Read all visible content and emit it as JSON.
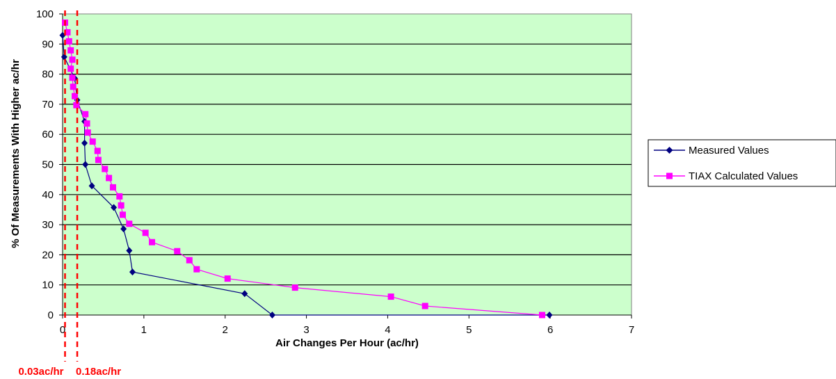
{
  "chart_data": {
    "type": "line",
    "title": "",
    "xlabel": "Air Changes Per Hour (ac/hr)",
    "ylabel": "% Of Measurements With Higher ac/hr",
    "xlim": [
      0,
      7
    ],
    "ylim": [
      0,
      100
    ],
    "x_ticks": [
      "0",
      "1",
      "2",
      "3",
      "4",
      "5",
      "6",
      "7"
    ],
    "y_ticks": [
      "0",
      "10",
      "20",
      "30",
      "40",
      "50",
      "60",
      "70",
      "80",
      "90",
      "100"
    ],
    "grid": "horizontal",
    "legend_position": "right",
    "plot_background": "#ccffcc",
    "series": [
      {
        "name": "Measured Values",
        "color": "#000080",
        "marker": "diamond",
        "points": [
          [
            0.0,
            92.9
          ],
          [
            0.02,
            85.7
          ],
          [
            0.15,
            78.6
          ],
          [
            0.18,
            71.4
          ],
          [
            0.27,
            64.3
          ],
          [
            0.27,
            57.1
          ],
          [
            0.28,
            50.0
          ],
          [
            0.36,
            42.9
          ],
          [
            0.63,
            35.7
          ],
          [
            0.75,
            28.6
          ],
          [
            0.82,
            21.4
          ],
          [
            0.86,
            14.3
          ],
          [
            2.24,
            7.1
          ],
          [
            2.58,
            0.0
          ],
          [
            5.99,
            0.0
          ]
        ]
      },
      {
        "name": "TIAX Calculated Values",
        "color": "#ff00ff",
        "marker": "square",
        "points": [
          [
            0.03,
            97.1
          ],
          [
            0.06,
            93.9
          ],
          [
            0.08,
            90.9
          ],
          [
            0.1,
            87.9
          ],
          [
            0.12,
            84.8
          ],
          [
            0.1,
            81.8
          ],
          [
            0.12,
            78.8
          ],
          [
            0.13,
            75.8
          ],
          [
            0.15,
            72.7
          ],
          [
            0.17,
            69.7
          ],
          [
            0.28,
            66.7
          ],
          [
            0.3,
            63.6
          ],
          [
            0.31,
            60.6
          ],
          [
            0.37,
            57.6
          ],
          [
            0.43,
            54.5
          ],
          [
            0.44,
            51.5
          ],
          [
            0.52,
            48.5
          ],
          [
            0.57,
            45.5
          ],
          [
            0.62,
            42.4
          ],
          [
            0.7,
            39.4
          ],
          [
            0.72,
            36.4
          ],
          [
            0.74,
            33.3
          ],
          [
            0.82,
            30.3
          ],
          [
            1.02,
            27.3
          ],
          [
            1.1,
            24.2
          ],
          [
            1.41,
            21.2
          ],
          [
            1.56,
            18.2
          ],
          [
            1.65,
            15.2
          ],
          [
            2.03,
            12.1
          ],
          [
            2.86,
            9.1
          ],
          [
            4.04,
            6.1
          ],
          [
            4.46,
            3.0
          ],
          [
            5.9,
            0.0
          ]
        ]
      }
    ],
    "reference_lines": [
      {
        "x": 0.03,
        "label": "0.03ac/hr",
        "color": "#ff0000",
        "style": "dashed"
      },
      {
        "x": 0.18,
        "label": "0.18ac/hr",
        "color": "#ff0000",
        "style": "dashed"
      }
    ]
  }
}
